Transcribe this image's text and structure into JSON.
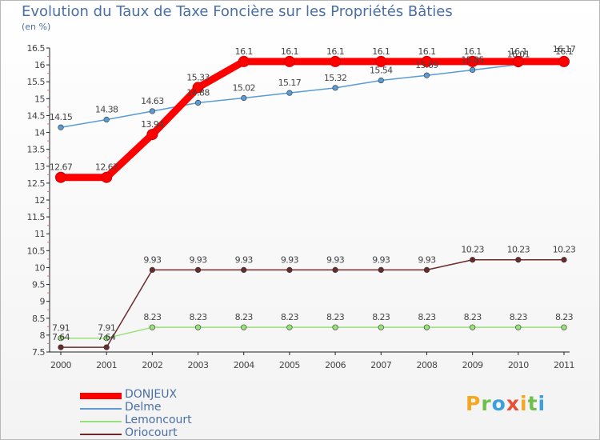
{
  "title": "Evolution du Taux de Taxe Foncière sur les Propriétés Bâties",
  "subtitle": "(en %)",
  "logo": {
    "text": "Proxiti",
    "letters": [
      {
        "ch": "P",
        "color": "#f5a623"
      },
      {
        "ch": "r",
        "color": "#6fc04a"
      },
      {
        "ch": "o",
        "color": "#3ba0e0"
      },
      {
        "ch": "x",
        "color": "#e94f37"
      },
      {
        "ch": "i",
        "color": "#f5a623"
      },
      {
        "ch": "t",
        "color": "#6fc04a"
      },
      {
        "ch": "i",
        "color": "#3ba0e0"
      }
    ]
  },
  "chart_data": {
    "type": "line",
    "title": "Evolution du Taux de Taxe Foncière sur les Propriétés Bâties",
    "ylabel": "(en %)",
    "xlabel": "",
    "x": [
      "2000",
      "2001",
      "2002",
      "2003",
      "2004",
      "2005",
      "2006",
      "2007",
      "2008",
      "2009",
      "2010",
      "2011"
    ],
    "ylim": [
      7.5,
      16.5
    ],
    "yticks": [
      "7.5",
      "8",
      "8.5",
      "9",
      "9.5",
      "10",
      "10.5",
      "11",
      "11.5",
      "12",
      "12.5",
      "13",
      "13.5",
      "14",
      "14.5",
      "15",
      "15.5",
      "16",
      "16.5"
    ],
    "grid": false,
    "legend_position": "bottom-left",
    "series": [
      {
        "name": "DONJEUX",
        "color": "#ff0000",
        "values": [
          12.67,
          12.67,
          13.94,
          15.33,
          16.1,
          16.1,
          16.1,
          16.1,
          16.1,
          16.1,
          16.1,
          16.1
        ],
        "labels": [
          "12.67",
          "12.67",
          "13.94",
          "15.33",
          "16.1",
          "16.1",
          "16.1",
          "16.1",
          "16.1",
          "16.1",
          "16.1",
          "16.1"
        ]
      },
      {
        "name": "Delme",
        "color": "#5b9bd5",
        "values": [
          14.15,
          14.38,
          14.63,
          14.88,
          15.02,
          15.17,
          15.32,
          15.54,
          15.69,
          15.85,
          16.01,
          16.17
        ],
        "labels": [
          "14.15",
          "14.38",
          "14.63",
          "14.88",
          "15.02",
          "15.17",
          "15.32",
          "15.54",
          "15.69",
          "15.85",
          "16.01",
          "16.17"
        ]
      },
      {
        "name": "Lemoncourt",
        "color": "#99e07a",
        "values": [
          7.91,
          7.91,
          8.23,
          8.23,
          8.23,
          8.23,
          8.23,
          8.23,
          8.23,
          8.23,
          8.23,
          8.23
        ],
        "labels": [
          "7.91",
          "7.91",
          "8.23",
          "8.23",
          "8.23",
          "8.23",
          "8.23",
          "8.23",
          "8.23",
          "8.23",
          "8.23",
          "8.23"
        ]
      },
      {
        "name": "Oriocourt",
        "color": "#6b2a2a",
        "values": [
          7.64,
          7.64,
          9.93,
          9.93,
          9.93,
          9.93,
          9.93,
          9.93,
          9.93,
          10.23,
          10.23,
          10.23
        ],
        "labels": [
          "7.64",
          "7.64",
          "9.93",
          "9.93",
          "9.93",
          "9.93",
          "9.93",
          "9.93",
          "9.93",
          "10.23",
          "10.23",
          "10.23"
        ]
      }
    ]
  }
}
